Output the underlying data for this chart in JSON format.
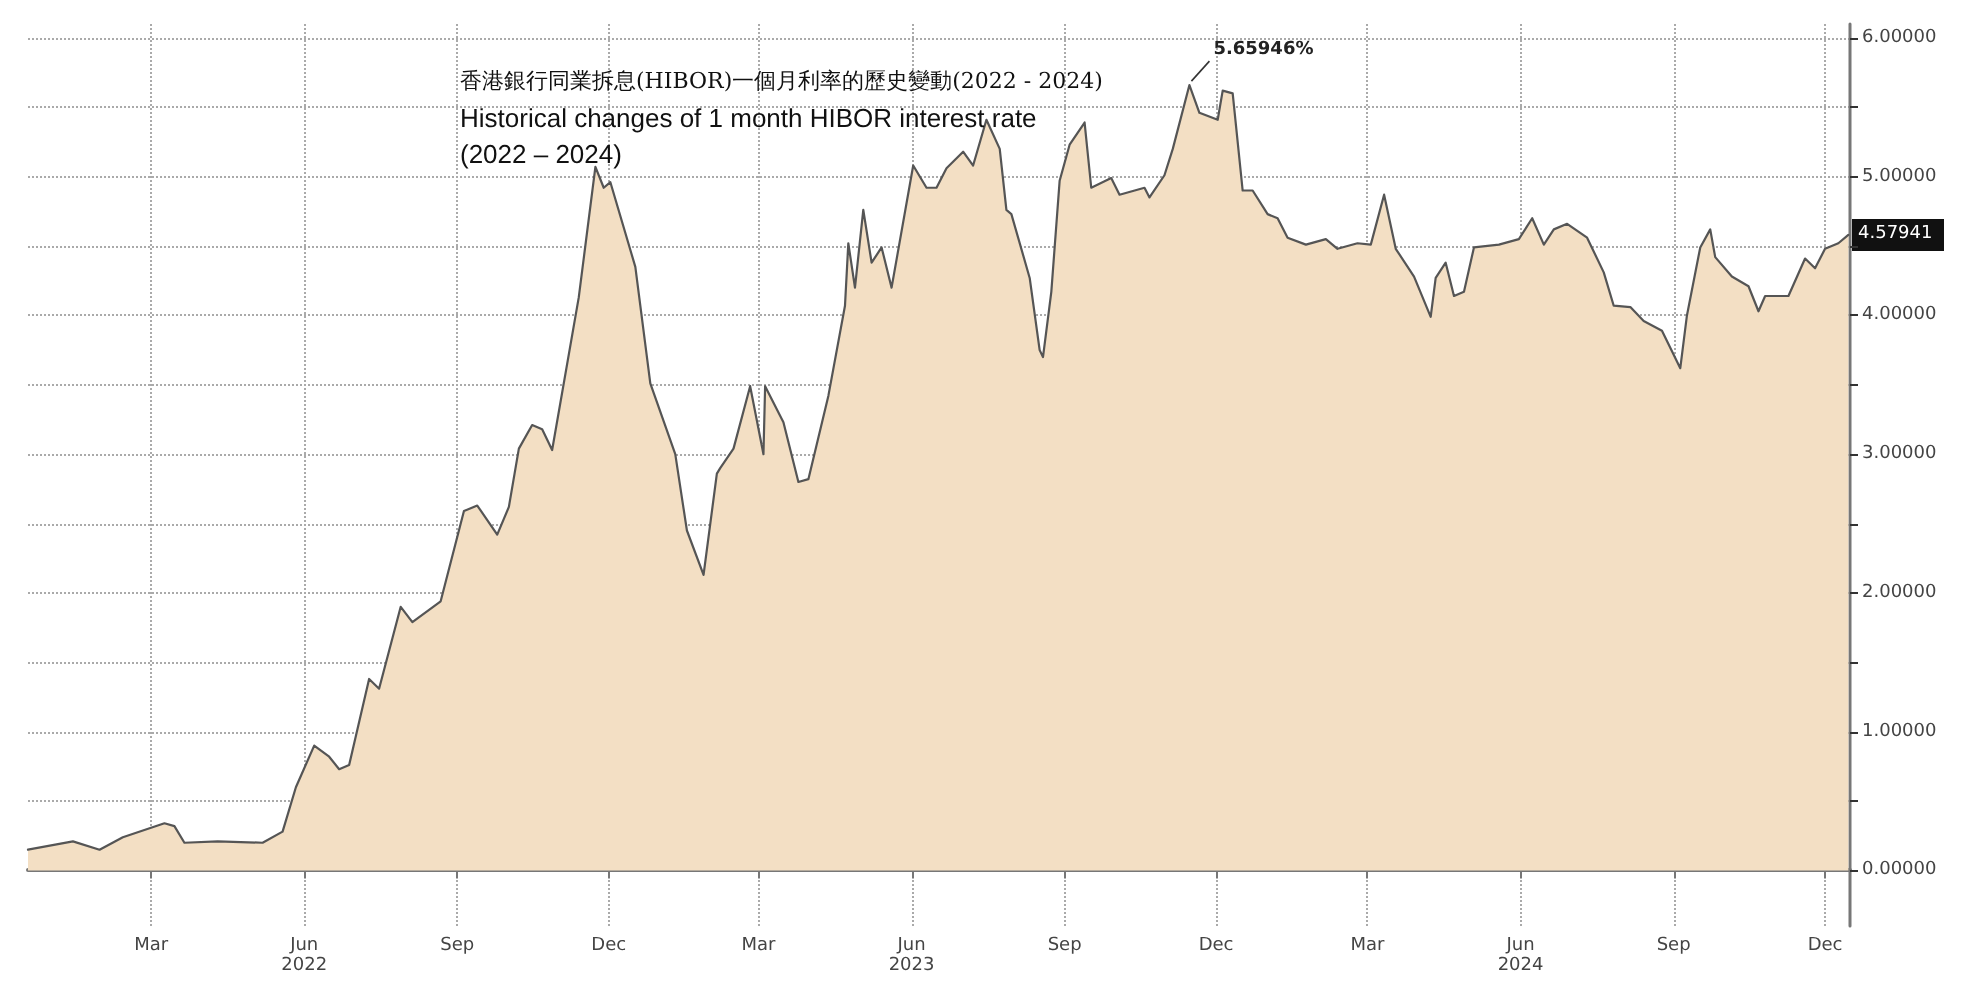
{
  "chart_data": {
    "type": "area",
    "title": "香港銀行同業拆息(HIBOR)一個月利率的歷史變動(2022 - 2024)",
    "subtitle": "Historical changes of 1 month HIBOR interest rate\n(2022 – 2024)",
    "x": [
      "2022-01-01",
      "2022-01-28",
      "2022-02-13",
      "2022-02-27",
      "2022-03-24",
      "2022-03-30",
      "2022-04-05",
      "2022-04-25",
      "2022-05-22",
      "2022-06-03",
      "2022-06-11",
      "2022-06-22",
      "2022-07-01",
      "2022-07-07",
      "2022-07-13",
      "2022-07-25",
      "2022-07-31",
      "2022-08-13",
      "2022-08-20",
      "2022-09-06",
      "2022-09-20",
      "2022-09-28",
      "2022-10-10",
      "2022-10-17",
      "2022-10-23",
      "2022-10-31",
      "2022-11-06",
      "2022-11-12",
      "2022-11-28",
      "2022-12-08",
      "2022-12-13",
      "2022-12-17",
      "2023-01-01",
      "2023-01-10",
      "2023-01-25",
      "2023-02-01",
      "2023-02-11",
      "2023-02-19",
      "2023-02-21",
      "2023-03-01",
      "2023-03-11",
      "2023-03-19",
      "2023-03-20",
      "2023-03-31",
      "2023-04-09",
      "2023-04-15",
      "2023-04-27",
      "2023-05-07",
      "2023-05-09",
      "2023-05-13",
      "2023-05-18",
      "2023-05-23",
      "2023-05-29",
      "2023-06-04",
      "2023-06-17",
      "2023-06-25",
      "2023-07-01",
      "2023-07-07",
      "2023-07-17",
      "2023-07-23",
      "2023-07-31",
      "2023-08-08",
      "2023-08-12",
      "2023-08-15",
      "2023-08-26",
      "2023-09-01",
      "2023-09-03",
      "2023-09-08",
      "2023-09-13",
      "2023-09-19",
      "2023-09-28",
      "2023-10-02",
      "2023-10-14",
      "2023-10-19",
      "2023-11-03",
      "2023-11-06",
      "2023-11-15",
      "2023-11-20",
      "2023-11-30",
      "2023-12-06",
      "2023-12-17",
      "2023-12-20",
      "2023-12-26",
      "2024-01-01",
      "2024-01-07",
      "2024-01-16",
      "2024-01-22",
      "2024-01-28",
      "2024-02-08",
      "2024-02-20",
      "2024-02-27",
      "2024-03-10",
      "2024-03-18",
      "2024-03-26",
      "2024-04-02",
      "2024-04-13",
      "2024-04-23",
      "2024-04-26",
      "2024-05-02",
      "2024-05-07",
      "2024-05-13",
      "2024-05-19",
      "2024-06-03",
      "2024-06-15",
      "2024-06-23",
      "2024-06-30",
      "2024-07-06",
      "2024-07-14",
      "2024-07-26",
      "2024-08-05",
      "2024-08-11",
      "2024-08-21",
      "2024-08-29",
      "2024-09-09",
      "2024-09-20",
      "2024-09-24",
      "2024-10-02",
      "2024-10-08",
      "2024-10-11",
      "2024-10-21",
      "2024-10-31",
      "2024-11-06",
      "2024-11-10",
      "2024-11-24",
      "2024-12-04",
      "2024-12-10",
      "2024-12-16",
      "2024-12-24",
      "2024-12-30"
    ],
    "series": [
      {
        "color": "#f3dfc4",
        "values": [
          0.15,
          0.21,
          0.15,
          0.24,
          0.34,
          0.32,
          0.2,
          0.21,
          0.2,
          0.28,
          0.6,
          0.9,
          0.82,
          0.73,
          0.76,
          1.38,
          1.31,
          1.9,
          1.79,
          1.94,
          2.59,
          2.63,
          2.42,
          2.62,
          3.04,
          3.21,
          3.18,
          3.03,
          4.13,
          5.07,
          4.92,
          4.96,
          4.35,
          3.51,
          3.0,
          2.45,
          2.13,
          2.86,
          2.9,
          3.04,
          3.49,
          3.0,
          3.49,
          3.23,
          2.8,
          2.82,
          3.42,
          4.07,
          4.52,
          4.2,
          4.76,
          4.38,
          4.49,
          4.2,
          5.08,
          4.92,
          4.92,
          5.06,
          5.18,
          5.08,
          5.41,
          5.2,
          4.76,
          4.73,
          4.27,
          3.75,
          3.7,
          4.17,
          4.97,
          5.23,
          5.39,
          4.92,
          4.99,
          4.87,
          4.92,
          4.85,
          5.01,
          5.2,
          5.66,
          5.46,
          5.41,
          5.62,
          5.6,
          4.9,
          4.9,
          4.73,
          4.7,
          4.56,
          4.51,
          4.55,
          4.48,
          4.52,
          4.51,
          4.87,
          4.48,
          4.28,
          3.99,
          4.27,
          4.38,
          4.14,
          4.17,
          4.49,
          4.51,
          4.55,
          4.7,
          4.51,
          4.62,
          4.66,
          4.56,
          4.31,
          4.07,
          4.06,
          3.96,
          3.89,
          3.62,
          4.0,
          4.49,
          4.62,
          4.42,
          4.28,
          4.21,
          4.03,
          4.14,
          4.14,
          4.41,
          4.34,
          4.48,
          4.52,
          4.58
        ]
      }
    ],
    "annotations": [
      {
        "text": "5.65946%",
        "x": "2023-11-30",
        "y": 5.65946
      },
      {
        "text": "4.57941",
        "x": "2024-12-30",
        "y": 4.57941
      }
    ],
    "xlim": [
      "2022-01-01",
      "2024-12-31"
    ],
    "xticks": [
      {
        "value": "2022-03-16",
        "label": "Mar"
      },
      {
        "value": "2022-06-16",
        "label": "Jun\n2022"
      },
      {
        "value": "2022-09-16",
        "label": "Sep"
      },
      {
        "value": "2022-12-16",
        "label": "Dec"
      },
      {
        "value": "2023-03-16",
        "label": "Mar"
      },
      {
        "value": "2023-06-16",
        "label": "Jun\n2023"
      },
      {
        "value": "2023-09-16",
        "label": "Sep"
      },
      {
        "value": "2023-12-16",
        "label": "Dec"
      },
      {
        "value": "2024-03-16",
        "label": "Mar"
      },
      {
        "value": "2024-06-16",
        "label": "Jun\n2024"
      },
      {
        "value": "2024-09-16",
        "label": "Sep"
      },
      {
        "value": "2024-12-16",
        "label": "Dec"
      }
    ],
    "ylim": [
      -0.4,
      6.1
    ],
    "yticks": [
      {
        "value": 0,
        "label": "0.00000"
      },
      {
        "value": 0.5,
        "label": null
      },
      {
        "value": 1,
        "label": "1.00000"
      },
      {
        "value": 1.5,
        "label": null
      },
      {
        "value": 2,
        "label": "2.00000"
      },
      {
        "value": 2.5,
        "label": null
      },
      {
        "value": 3,
        "label": "3.00000"
      },
      {
        "value": 3.5,
        "label": null
      },
      {
        "value": 4,
        "label": "4.00000"
      },
      {
        "value": 4.5,
        "label": null
      },
      {
        "value": 5,
        "label": "5.00000"
      },
      {
        "value": 5.5,
        "label": null
      },
      {
        "value": 6,
        "label": "6.00000"
      }
    ],
    "grid": true,
    "marker": "none"
  }
}
